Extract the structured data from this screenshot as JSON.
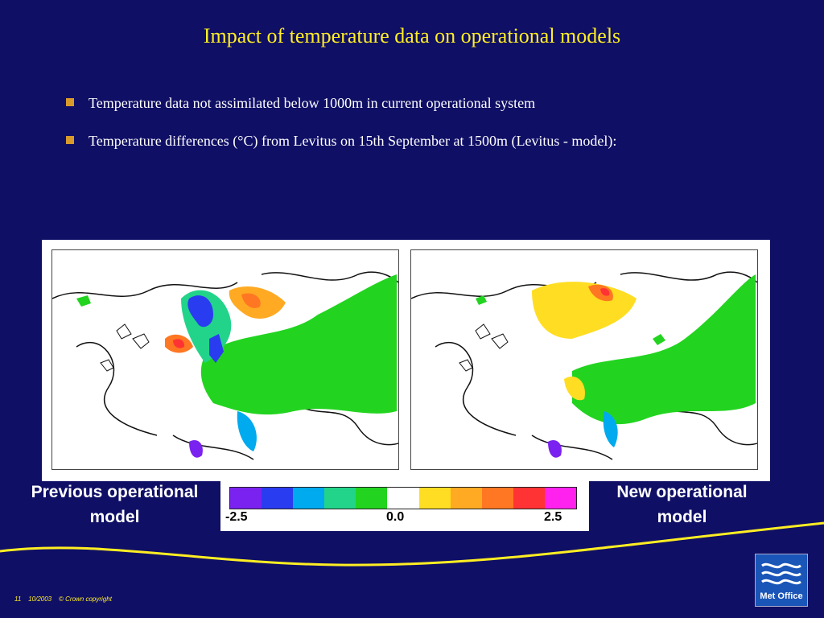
{
  "slide": {
    "title": "Impact of temperature data on operational models",
    "bullets": [
      "Temperature data not assimilated below 1000m in current operational system",
      "Temperature differences (°C) from Levitus on 15th September at 1500m (Levitus - model):"
    ]
  },
  "maps": {
    "left_caption": "Previous operational model",
    "right_caption": "New operational model"
  },
  "colorbar": {
    "colors": [
      "#7a22f0",
      "#2a3cf0",
      "#00aaee",
      "#22d48a",
      "#22d420",
      "#ffffff",
      "#ffdd22",
      "#ffaa22",
      "#ff7722",
      "#ff3333",
      "#ff22ee"
    ],
    "label_min": "-2.5",
    "label_mid": "0.0",
    "label_max": "2.5"
  },
  "footer": {
    "page_number": "11",
    "date": "10/2003",
    "copyright": "© Crown copyright"
  },
  "logo": {
    "text": "Met Office",
    "icon": "met-office-waves-icon"
  },
  "colors": {
    "background": "#0f0f66",
    "title": "#ffee22",
    "bullet": "#d89a2b"
  }
}
